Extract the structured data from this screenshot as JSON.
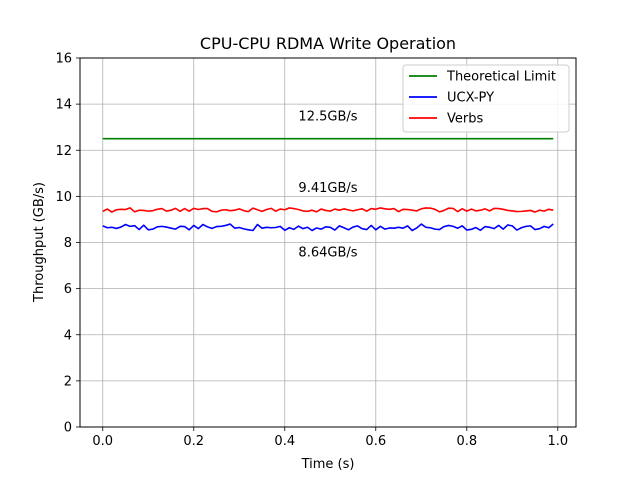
{
  "chart_data": {
    "type": "line",
    "title": "CPU-CPU RDMA Write Operation",
    "xlabel": "Time (s)",
    "ylabel": "Throughput (GB/s)",
    "xlim": [
      -0.05,
      1.04
    ],
    "ylim": [
      0,
      16
    ],
    "xticks": [
      0.0,
      0.2,
      0.4,
      0.6,
      0.8,
      1.0
    ],
    "xtick_labels": [
      "0.0",
      "0.2",
      "0.4",
      "0.6",
      "0.8",
      "1.0"
    ],
    "yticks": [
      0,
      2,
      4,
      6,
      8,
      10,
      12,
      14,
      16
    ],
    "ytick_labels": [
      "0",
      "2",
      "4",
      "6",
      "8",
      "10",
      "12",
      "14",
      "16"
    ],
    "grid": true,
    "legend_position": "top-right",
    "series": [
      {
        "name": "Theoretical Limit",
        "color": "#008000",
        "x": [
          0.0,
          0.99
        ],
        "values": [
          12.5,
          12.5
        ]
      },
      {
        "name": "UCX-PY",
        "color": "#0000ff",
        "x": [
          0.0,
          0.01,
          0.02,
          0.03,
          0.04,
          0.05,
          0.06,
          0.07,
          0.08,
          0.09,
          0.1,
          0.11,
          0.12,
          0.13,
          0.14,
          0.15,
          0.16,
          0.17,
          0.18,
          0.19,
          0.2,
          0.21,
          0.22,
          0.23,
          0.24,
          0.25,
          0.26,
          0.27,
          0.28,
          0.29,
          0.3,
          0.31,
          0.32,
          0.33,
          0.34,
          0.35,
          0.36,
          0.37,
          0.38,
          0.39,
          0.4,
          0.41,
          0.42,
          0.43,
          0.44,
          0.45,
          0.46,
          0.47,
          0.48,
          0.49,
          0.5,
          0.51,
          0.52,
          0.53,
          0.54,
          0.55,
          0.56,
          0.57,
          0.58,
          0.59,
          0.6,
          0.61,
          0.62,
          0.63,
          0.64,
          0.65,
          0.66,
          0.67,
          0.68,
          0.69,
          0.7,
          0.71,
          0.72,
          0.73,
          0.74,
          0.75,
          0.76,
          0.77,
          0.78,
          0.79,
          0.8,
          0.81,
          0.82,
          0.83,
          0.84,
          0.85,
          0.86,
          0.87,
          0.88,
          0.89,
          0.9,
          0.91,
          0.92,
          0.93,
          0.94,
          0.95,
          0.96,
          0.97,
          0.98,
          0.99
        ],
        "values": [
          8.72,
          8.64,
          8.66,
          8.61,
          8.67,
          8.78,
          8.7,
          8.73,
          8.56,
          8.75,
          8.55,
          8.58,
          8.68,
          8.7,
          8.67,
          8.62,
          8.58,
          8.7,
          8.69,
          8.55,
          8.74,
          8.6,
          8.78,
          8.68,
          8.61,
          8.69,
          8.7,
          8.74,
          8.8,
          8.62,
          8.65,
          8.59,
          8.55,
          8.52,
          8.78,
          8.62,
          8.66,
          8.64,
          8.65,
          8.7,
          8.53,
          8.64,
          8.57,
          8.71,
          8.6,
          8.66,
          8.52,
          8.63,
          8.58,
          8.68,
          8.66,
          8.54,
          8.72,
          8.64,
          8.55,
          8.67,
          8.72,
          8.6,
          8.56,
          8.74,
          8.55,
          8.7,
          8.58,
          8.63,
          8.62,
          8.66,
          8.62,
          8.72,
          8.52,
          8.63,
          8.8,
          8.66,
          8.64,
          8.58,
          8.56,
          8.69,
          8.74,
          8.7,
          8.62,
          8.72,
          8.54,
          8.57,
          8.65,
          8.53,
          8.69,
          8.66,
          8.6,
          8.74,
          8.58,
          8.76,
          8.72,
          8.54,
          8.64,
          8.7,
          8.72,
          8.56,
          8.6,
          8.7,
          8.64,
          8.8
        ]
      },
      {
        "name": "Verbs",
        "color": "#ff0000",
        "x": [
          0.0,
          0.01,
          0.02,
          0.03,
          0.04,
          0.05,
          0.06,
          0.07,
          0.08,
          0.09,
          0.1,
          0.11,
          0.12,
          0.13,
          0.14,
          0.15,
          0.16,
          0.17,
          0.18,
          0.19,
          0.2,
          0.21,
          0.22,
          0.23,
          0.24,
          0.25,
          0.26,
          0.27,
          0.28,
          0.29,
          0.3,
          0.31,
          0.32,
          0.33,
          0.34,
          0.35,
          0.36,
          0.37,
          0.38,
          0.39,
          0.4,
          0.41,
          0.42,
          0.43,
          0.44,
          0.45,
          0.46,
          0.47,
          0.48,
          0.49,
          0.5,
          0.51,
          0.52,
          0.53,
          0.54,
          0.55,
          0.56,
          0.57,
          0.58,
          0.59,
          0.6,
          0.61,
          0.62,
          0.63,
          0.64,
          0.65,
          0.66,
          0.67,
          0.68,
          0.69,
          0.7,
          0.71,
          0.72,
          0.73,
          0.74,
          0.75,
          0.76,
          0.77,
          0.78,
          0.79,
          0.8,
          0.81,
          0.82,
          0.83,
          0.84,
          0.85,
          0.86,
          0.87,
          0.88,
          0.89,
          0.9,
          0.91,
          0.92,
          0.93,
          0.94,
          0.95,
          0.96,
          0.97,
          0.98,
          0.99
        ],
        "values": [
          9.35,
          9.45,
          9.32,
          9.42,
          9.44,
          9.43,
          9.5,
          9.33,
          9.4,
          9.39,
          9.36,
          9.38,
          9.44,
          9.47,
          9.36,
          9.4,
          9.48,
          9.35,
          9.47,
          9.36,
          9.48,
          9.43,
          9.47,
          9.47,
          9.35,
          9.33,
          9.4,
          9.42,
          9.38,
          9.4,
          9.46,
          9.38,
          9.34,
          9.49,
          9.42,
          9.35,
          9.43,
          9.48,
          9.36,
          9.45,
          9.42,
          9.5,
          9.47,
          9.43,
          9.37,
          9.35,
          9.4,
          9.33,
          9.45,
          9.39,
          9.36,
          9.45,
          9.4,
          9.46,
          9.41,
          9.37,
          9.42,
          9.46,
          9.36,
          9.47,
          9.44,
          9.5,
          9.46,
          9.44,
          9.47,
          9.34,
          9.44,
          9.43,
          9.4,
          9.37,
          9.46,
          9.5,
          9.49,
          9.44,
          9.33,
          9.39,
          9.49,
          9.48,
          9.34,
          9.46,
          9.36,
          9.45,
          9.37,
          9.4,
          9.46,
          9.37,
          9.48,
          9.47,
          9.44,
          9.39,
          9.37,
          9.34,
          9.35,
          9.37,
          9.39,
          9.32,
          9.4,
          9.36,
          9.44,
          9.4
        ]
      }
    ],
    "annotations": [
      {
        "text": "12.5GB/s",
        "x": 0.43,
        "y": 13.5
      },
      {
        "text": "9.41GB/s",
        "x": 0.43,
        "y": 10.4
      },
      {
        "text": "8.64GB/s",
        "x": 0.43,
        "y": 7.6
      }
    ]
  }
}
